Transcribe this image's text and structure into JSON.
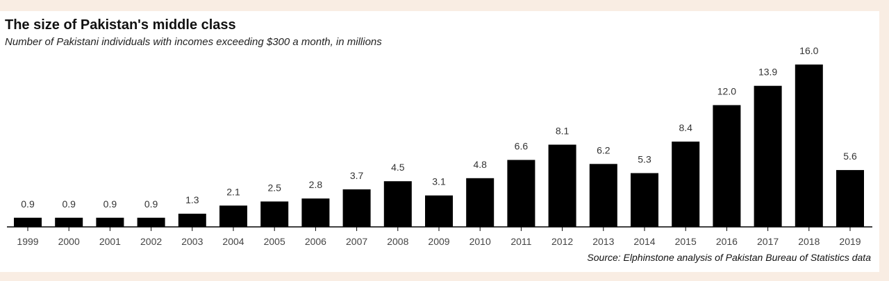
{
  "chart_data": {
    "type": "bar",
    "title": "The size of Pakistan's middle class",
    "subtitle": "Number of Pakistani individuals with incomes exceeding $300 a month, in millions",
    "source": "Source: Elphinstone analysis of Pakistan Bureau of Statistics data",
    "categories": [
      "1999",
      "2000",
      "2001",
      "2002",
      "2003",
      "2004",
      "2005",
      "2006",
      "2007",
      "2008",
      "2009",
      "2010",
      "2011",
      "2012",
      "2013",
      "2014",
      "2015",
      "2016",
      "2017",
      "2018",
      "2019"
    ],
    "values": [
      0.9,
      0.9,
      0.9,
      0.9,
      1.3,
      2.1,
      2.5,
      2.8,
      3.7,
      4.5,
      3.1,
      4.8,
      6.6,
      8.1,
      6.2,
      5.3,
      8.4,
      12.0,
      13.9,
      16.0,
      5.6
    ],
    "labels": [
      "0.9",
      "0.9",
      "0.9",
      "0.9",
      "1.3",
      "2.1",
      "2.5",
      "2.8",
      "3.7",
      "4.5",
      "3.1",
      "4.8",
      "6.6",
      "8.1",
      "6.2",
      "5.3",
      "8.4",
      "12.0",
      "13.9",
      "16.0",
      "5.6"
    ],
    "ylim": [
      0,
      16
    ],
    "bar_color": "#000000",
    "grid": false,
    "xlabel": "",
    "ylabel": ""
  }
}
